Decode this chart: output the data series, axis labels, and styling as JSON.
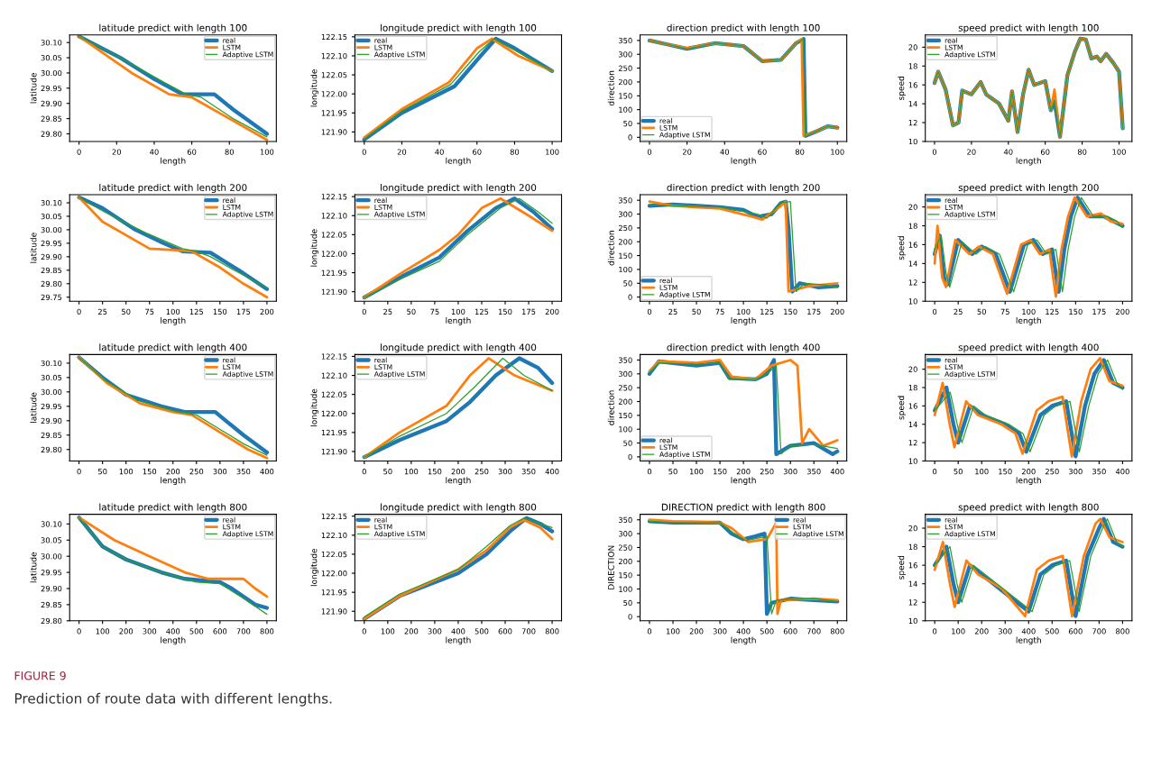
{
  "chart_data": [
    {
      "type": "line",
      "title": "latitude predict with length 100",
      "xlabel": "length",
      "ylabel": "latitude",
      "legend": "top right",
      "xlim": [
        -5,
        105
      ],
      "xticks": [
        0,
        20,
        40,
        60,
        80,
        100
      ],
      "ylim": [
        29.775,
        30.125
      ],
      "yticks": [
        {
          "value": 29.8,
          "label": "29.80"
        },
        {
          "value": 29.85,
          "label": "29.85"
        },
        {
          "value": 29.9,
          "label": "29.90"
        },
        {
          "value": 29.95,
          "label": "29.95"
        },
        {
          "value": 30.0,
          "label": "30.00"
        },
        {
          "value": 30.05,
          "label": "30.05"
        },
        {
          "value": 30.1,
          "label": "30.10"
        }
      ],
      "annotations": [
        "FIGURE 9",
        "Prediction of route data with different lengths."
      ],
      "series": [
        {
          "name": "real",
          "color": "#1f77b4",
          "x": [
            0,
            22,
            40,
            55,
            65,
            72,
            82,
            100
          ],
          "values": [
            30.12,
            30.05,
            29.98,
            29.93,
            29.93,
            29.93,
            29.88,
            29.8
          ]
        },
        {
          "name": "LSTM",
          "color": "#ff7f0e",
          "x": [
            0,
            28,
            48,
            60,
            80,
            100
          ],
          "values": [
            30.12,
            30.0,
            29.93,
            29.92,
            29.85,
            29.78
          ]
        },
        {
          "name": "Adaptive LSTM",
          "color": "#2ca02c",
          "x": [
            0,
            25,
            45,
            57,
            65,
            82,
            100
          ],
          "values": [
            30.12,
            30.04,
            29.97,
            29.93,
            29.92,
            29.85,
            29.79
          ]
        }
      ]
    },
    {
      "type": "line",
      "title": "longitude predict with length 100",
      "xlabel": "length",
      "ylabel": "longitude",
      "legend": "top left",
      "xlim": [
        -5,
        105
      ],
      "xticks": [
        0,
        20,
        40,
        60,
        80,
        100
      ],
      "ylim": [
        121.875,
        122.155
      ],
      "yticks": [
        {
          "value": 121.9,
          "label": "121.90"
        },
        {
          "value": 121.95,
          "label": "121.95"
        },
        {
          "value": 122.0,
          "label": "122.00"
        },
        {
          "value": 122.05,
          "label": "122.05"
        },
        {
          "value": 122.1,
          "label": "122.10"
        },
        {
          "value": 122.15,
          "label": "122.15"
        }
      ],
      "series": [
        {
          "name": "real",
          "color": "#1f77b4",
          "x": [
            0,
            20,
            48,
            62,
            70,
            80,
            100
          ],
          "values": [
            121.88,
            121.95,
            122.02,
            122.1,
            122.145,
            122.12,
            122.06
          ]
        },
        {
          "name": "LSTM",
          "color": "#ff7f0e",
          "x": [
            0,
            20,
            45,
            60,
            68,
            82,
            100
          ],
          "values": [
            121.885,
            121.96,
            122.03,
            122.12,
            122.145,
            122.1,
            122.06
          ]
        },
        {
          "name": "Adaptive LSTM",
          "color": "#2ca02c",
          "x": [
            0,
            20,
            46,
            61,
            69,
            80,
            100
          ],
          "values": [
            121.882,
            121.955,
            122.025,
            122.11,
            122.145,
            122.115,
            122.06
          ]
        }
      ]
    },
    {
      "type": "line",
      "title": "direction predict with length 100",
      "xlabel": "length",
      "ylabel": "direction",
      "legend": "bottom left",
      "xlim": [
        -5,
        105
      ],
      "xticks": [
        0,
        20,
        40,
        60,
        80,
        100
      ],
      "ylim": [
        -15,
        370
      ],
      "yticks": [
        0,
        50,
        100,
        150,
        200,
        250,
        300,
        350
      ],
      "series": [
        {
          "name": "real",
          "color": "#1f77b4",
          "x": [
            0,
            10,
            20,
            35,
            50,
            60,
            70,
            78,
            82,
            83,
            90,
            95,
            100
          ],
          "values": [
            350,
            335,
            320,
            340,
            330,
            275,
            280,
            340,
            355,
            5,
            25,
            40,
            35
          ]
        },
        {
          "name": "LSTM",
          "color": "#ff7f0e",
          "x": [
            0,
            10,
            20,
            35,
            50,
            60,
            70,
            78,
            81,
            82,
            90,
            95,
            100
          ],
          "values": [
            350,
            335,
            322,
            340,
            330,
            275,
            280,
            340,
            355,
            5,
            25,
            40,
            35
          ]
        },
        {
          "name": "Adaptive LSTM",
          "color": "#2ca02c",
          "x": [
            0,
            10,
            20,
            35,
            50,
            60,
            70,
            78,
            82,
            83,
            90,
            95,
            100
          ],
          "values": [
            350,
            335,
            320,
            340,
            330,
            275,
            280,
            340,
            355,
            5,
            25,
            40,
            35
          ]
        }
      ]
    },
    {
      "type": "line",
      "title": "speed predict with length 100",
      "xlabel": "length",
      "ylabel": "speed",
      "legend": "top left",
      "xlim": [
        -5,
        107
      ],
      "xticks": [
        0,
        20,
        40,
        60,
        80,
        100
      ],
      "ylim": [
        10,
        21.3
      ],
      "yticks": [
        10,
        12,
        14,
        16,
        18,
        20
      ],
      "series": [
        {
          "name": "real",
          "color": "#1f77b4",
          "x": [
            0,
            2,
            6,
            10,
            13,
            15,
            20,
            25,
            28,
            35,
            40,
            42,
            45,
            48,
            51,
            54,
            60,
            63,
            65,
            68,
            72,
            76,
            79,
            82,
            85,
            88,
            90,
            93,
            97,
            100,
            102
          ],
          "values": [
            16.2,
            17.4,
            15.5,
            11.7,
            12,
            15.4,
            15,
            16.3,
            15,
            14,
            12.2,
            15.3,
            11,
            15,
            17.6,
            16,
            16.4,
            13.3,
            14.3,
            10.5,
            17,
            19.5,
            20.9,
            20.8,
            18.8,
            19,
            18.5,
            19.3,
            18.3,
            17.4,
            11.4
          ]
        },
        {
          "name": "LSTM",
          "color": "#ff7f0e",
          "x": [
            0,
            2,
            6,
            10,
            13,
            15,
            20,
            25,
            28,
            35,
            40,
            42,
            45,
            48,
            51,
            54,
            60,
            63,
            65,
            68,
            72,
            76,
            79,
            82,
            85,
            88,
            90,
            93,
            97,
            100,
            102
          ],
          "values": [
            16.2,
            17.4,
            15.5,
            11.7,
            12,
            15.4,
            15,
            16.3,
            15,
            14,
            12.2,
            15.3,
            11,
            15,
            17.6,
            16,
            16.4,
            13.3,
            15.5,
            10.5,
            17,
            19.5,
            20.9,
            20.8,
            18.8,
            19,
            18.5,
            19.3,
            18.3,
            17.4,
            11.4
          ]
        },
        {
          "name": "Adaptive LSTM",
          "color": "#2ca02c",
          "x": [
            0,
            2,
            6,
            10,
            13,
            15,
            20,
            25,
            28,
            35,
            40,
            42,
            45,
            48,
            51,
            54,
            60,
            63,
            65,
            68,
            72,
            76,
            79,
            82,
            85,
            88,
            90,
            93,
            97,
            100,
            102
          ],
          "values": [
            16.2,
            17.4,
            15.5,
            11.7,
            12,
            15.4,
            15,
            16.3,
            15,
            14,
            12.2,
            15.3,
            11,
            15,
            17.6,
            16,
            16.4,
            13.3,
            14.3,
            10.5,
            17,
            19.5,
            20.9,
            20.8,
            18.8,
            19,
            18.5,
            19.3,
            18.3,
            17.4,
            11.4
          ]
        }
      ]
    },
    {
      "type": "line",
      "title": "latitude predict with length 200",
      "xlabel": "length",
      "ylabel": "latitude",
      "legend": "top right",
      "xlim": [
        -10,
        210
      ],
      "xticks": [
        0,
        25,
        50,
        75,
        100,
        125,
        150,
        175,
        200
      ],
      "ylim": [
        29.735,
        30.13
      ],
      "yticks": [
        {
          "value": 29.75,
          "label": "29.75"
        },
        {
          "value": 29.8,
          "label": "29.80"
        },
        {
          "value": 29.85,
          "label": "29.85"
        },
        {
          "value": 29.9,
          "label": "29.90"
        },
        {
          "value": 29.95,
          "label": "29.95"
        },
        {
          "value": 30.0,
          "label": "30.00"
        },
        {
          "value": 30.05,
          "label": "30.05"
        },
        {
          "value": 30.1,
          "label": "30.10"
        }
      ],
      "series": [
        {
          "name": "real",
          "color": "#1f77b4",
          "x": [
            0,
            25,
            60,
            90,
            110,
            140,
            170,
            200
          ],
          "values": [
            30.12,
            30.08,
            30.0,
            29.95,
            29.92,
            29.915,
            29.85,
            29.78
          ]
        },
        {
          "name": "LSTM",
          "color": "#ff7f0e",
          "x": [
            0,
            25,
            75,
            100,
            120,
            150,
            175,
            200
          ],
          "values": [
            30.12,
            30.03,
            29.93,
            29.925,
            29.92,
            29.86,
            29.8,
            29.75
          ]
        },
        {
          "name": "Adaptive LSTM",
          "color": "#2ca02c",
          "x": [
            0,
            25,
            70,
            110,
            125,
            140,
            165,
            200
          ],
          "values": [
            30.12,
            30.07,
            29.99,
            29.93,
            29.92,
            29.9,
            29.85,
            29.785
          ]
        }
      ]
    },
    {
      "type": "line",
      "title": "longitude predict with length 200",
      "xlabel": "length",
      "ylabel": "longitude",
      "legend": "top left",
      "xlim": [
        -10,
        210
      ],
      "xticks": [
        0,
        25,
        50,
        75,
        100,
        125,
        150,
        175,
        200
      ],
      "ylim": [
        121.875,
        122.155
      ],
      "yticks": [
        {
          "value": 121.9,
          "label": "121.90"
        },
        {
          "value": 121.95,
          "label": "121.95"
        },
        {
          "value": 122.0,
          "label": "122.00"
        },
        {
          "value": 122.05,
          "label": "122.05"
        },
        {
          "value": 122.1,
          "label": "122.10"
        },
        {
          "value": 122.15,
          "label": "122.15"
        }
      ],
      "series": [
        {
          "name": "real",
          "color": "#1f77b4",
          "x": [
            0,
            40,
            80,
            110,
            140,
            160,
            180,
            200
          ],
          "values": [
            121.885,
            121.94,
            121.99,
            122.06,
            122.12,
            122.145,
            122.11,
            122.065
          ]
        },
        {
          "name": "LSTM",
          "color": "#ff7f0e",
          "x": [
            0,
            40,
            80,
            100,
            125,
            145,
            175,
            200
          ],
          "values": [
            121.885,
            121.95,
            122.01,
            122.05,
            122.12,
            122.145,
            122.1,
            122.06
          ]
        },
        {
          "name": "Adaptive LSTM",
          "color": "#2ca02c",
          "x": [
            0,
            40,
            80,
            110,
            145,
            165,
            185,
            200
          ],
          "values": [
            121.885,
            121.935,
            121.98,
            122.05,
            122.12,
            122.145,
            122.11,
            122.08
          ]
        }
      ]
    },
    {
      "type": "line",
      "title": "direction predict with length 200",
      "xlabel": "length",
      "ylabel": "direction",
      "legend": "bottom left",
      "xlim": [
        -10,
        210
      ],
      "xticks": [
        0,
        25,
        50,
        75,
        100,
        125,
        150,
        175,
        200
      ],
      "ylim": [
        -15,
        370
      ],
      "yticks": [
        0,
        50,
        100,
        150,
        200,
        250,
        300,
        350
      ],
      "series": [
        {
          "name": "real",
          "color": "#1f77b4",
          "x": [
            0,
            25,
            75,
            100,
            115,
            130,
            140,
            145,
            148,
            152,
            160,
            180,
            200
          ],
          "values": [
            330,
            335,
            325,
            315,
            290,
            300,
            340,
            345,
            250,
            20,
            50,
            35,
            40
          ]
        },
        {
          "name": "LSTM",
          "color": "#ff7f0e",
          "x": [
            0,
            25,
            75,
            110,
            120,
            140,
            145,
            148,
            170,
            200
          ],
          "values": [
            345,
            330,
            320,
            290,
            280,
            330,
            345,
            20,
            40,
            50
          ]
        },
        {
          "name": "Adaptive LSTM",
          "color": "#2ca02c",
          "x": [
            0,
            25,
            75,
            115,
            125,
            140,
            150,
            156,
            165,
            185,
            200
          ],
          "values": [
            335,
            330,
            325,
            300,
            285,
            340,
            345,
            20,
            50,
            45,
            35
          ]
        }
      ]
    },
    {
      "type": "line",
      "title": "speed predict with length 200",
      "xlabel": "length",
      "ylabel": "speed",
      "legend": "top left",
      "xlim": [
        -10,
        210
      ],
      "xticks": [
        0,
        25,
        50,
        75,
        100,
        125,
        150,
        175,
        200
      ],
      "ylim": [
        10,
        21.3
      ],
      "yticks": [
        10,
        12,
        14,
        16,
        18,
        20
      ],
      "series": [
        {
          "name": "real",
          "color": "#1f77b4",
          "x": [
            0,
            5,
            10,
            14,
            25,
            40,
            50,
            65,
            80,
            95,
            105,
            115,
            125,
            132,
            138,
            145,
            152,
            165,
            180,
            190,
            200
          ],
          "values": [
            15,
            17,
            12.5,
            11.8,
            16.5,
            15,
            15.8,
            15,
            11,
            16,
            16.5,
            15,
            15.5,
            11,
            15.5,
            19,
            21,
            19,
            19,
            18.5,
            18
          ]
        },
        {
          "name": "LSTM",
          "color": "#ff7f0e",
          "x": [
            0,
            3,
            8,
            12,
            22,
            37,
            47,
            62,
            77,
            92,
            102,
            112,
            122,
            129,
            135,
            142,
            149,
            162,
            177,
            187,
            200
          ],
          "values": [
            14,
            18,
            12.5,
            11.5,
            16.5,
            15,
            15.8,
            15,
            10.8,
            16,
            16.5,
            15,
            15.5,
            10.5,
            15.5,
            19,
            21,
            19,
            19.3,
            18.5,
            18.2
          ]
        },
        {
          "name": "Adaptive LSTM",
          "color": "#2ca02c",
          "x": [
            0,
            7,
            12,
            16,
            29,
            44,
            54,
            69,
            84,
            99,
            109,
            119,
            129,
            136,
            142,
            149,
            156,
            169,
            184,
            194,
            200
          ],
          "values": [
            15.5,
            17,
            13,
            11.5,
            16.3,
            15,
            15.8,
            15,
            11,
            16,
            16.5,
            15,
            15.5,
            11,
            15.5,
            19,
            21,
            19,
            19,
            18.5,
            17.8
          ]
        }
      ]
    },
    {
      "type": "line",
      "title": "latitude predict with length 400",
      "xlabel": "length",
      "ylabel": "latitude",
      "legend": "top right",
      "xlim": [
        -20,
        420
      ],
      "xticks": [
        0,
        50,
        100,
        150,
        200,
        250,
        300,
        350,
        400
      ],
      "ylim": [
        29.76,
        30.13
      ],
      "yticks": [
        {
          "value": 29.8,
          "label": "29.80"
        },
        {
          "value": 29.85,
          "label": "29.85"
        },
        {
          "value": 29.9,
          "label": "29.90"
        },
        {
          "value": 29.95,
          "label": "29.95"
        },
        {
          "value": 30.0,
          "label": "30.00"
        },
        {
          "value": 30.05,
          "label": "30.05"
        },
        {
          "value": 30.1,
          "label": "30.10"
        }
      ],
      "series": [
        {
          "name": "real",
          "color": "#1f77b4",
          "x": [
            0,
            50,
            100,
            175,
            225,
            290,
            350,
            400
          ],
          "values": [
            30.12,
            30.05,
            29.99,
            29.95,
            29.93,
            29.93,
            29.85,
            29.79
          ]
        },
        {
          "name": "LSTM",
          "color": "#ff7f0e",
          "x": [
            0,
            60,
            130,
            200,
            240,
            300,
            360,
            400
          ],
          "values": [
            30.12,
            30.03,
            29.96,
            29.93,
            29.92,
            29.86,
            29.8,
            29.77
          ]
        },
        {
          "name": "Adaptive LSTM",
          "color": "#2ca02c",
          "x": [
            0,
            55,
            125,
            210,
            250,
            290,
            350,
            400
          ],
          "values": [
            30.12,
            30.04,
            29.97,
            29.93,
            29.92,
            29.88,
            29.82,
            29.78
          ]
        }
      ]
    },
    {
      "type": "line",
      "title": "longitude predict with length 400",
      "xlabel": "length",
      "ylabel": "longitude",
      "legend": "top left",
      "xlim": [
        -20,
        420
      ],
      "xticks": [
        0,
        50,
        100,
        150,
        200,
        250,
        300,
        350,
        400
      ],
      "ylim": [
        121.875,
        122.155
      ],
      "yticks": [
        {
          "value": 121.9,
          "label": "121.90"
        },
        {
          "value": 121.95,
          "label": "121.95"
        },
        {
          "value": 122.0,
          "label": "122.00"
        },
        {
          "value": 122.05,
          "label": "122.05"
        },
        {
          "value": 122.1,
          "label": "122.10"
        },
        {
          "value": 122.15,
          "label": "122.15"
        }
      ],
      "series": [
        {
          "name": "real",
          "color": "#1f77b4",
          "x": [
            0,
            75,
            175,
            225,
            280,
            330,
            370,
            400
          ],
          "values": [
            121.885,
            121.93,
            121.98,
            122.03,
            122.1,
            122.145,
            122.12,
            122.08
          ]
        },
        {
          "name": "LSTM",
          "color": "#ff7f0e",
          "x": [
            0,
            75,
            175,
            225,
            265,
            320,
            400
          ],
          "values": [
            121.885,
            121.95,
            122.02,
            122.1,
            122.145,
            122.1,
            122.06
          ]
        },
        {
          "name": "Adaptive LSTM",
          "color": "#2ca02c",
          "x": [
            0,
            75,
            175,
            235,
            295,
            340,
            400
          ],
          "values": [
            121.885,
            121.94,
            122.0,
            122.07,
            122.145,
            122.1,
            122.06
          ]
        }
      ]
    },
    {
      "type": "line",
      "title": "direction predict with length 400",
      "xlabel": "length",
      "ylabel": "direction",
      "legend": "bottom left",
      "xlim": [
        -20,
        420
      ],
      "xticks": [
        0,
        50,
        100,
        150,
        200,
        250,
        300,
        350,
        400
      ],
      "ylim": [
        -15,
        370
      ],
      "yticks": [
        0,
        50,
        100,
        150,
        200,
        250,
        300,
        350
      ],
      "series": [
        {
          "name": "real",
          "color": "#1f77b4",
          "x": [
            0,
            20,
            100,
            150,
            170,
            225,
            250,
            265,
            270,
            300,
            350,
            390,
            400
          ],
          "values": [
            300,
            345,
            330,
            340,
            285,
            280,
            300,
            350,
            10,
            40,
            50,
            10,
            20
          ]
        },
        {
          "name": "LSTM",
          "color": "#ff7f0e",
          "x": [
            0,
            20,
            100,
            150,
            175,
            225,
            260,
            300,
            315,
            325,
            340,
            370,
            400
          ],
          "values": [
            310,
            345,
            340,
            350,
            290,
            280,
            330,
            350,
            330,
            50,
            100,
            40,
            60
          ]
        },
        {
          "name": "Adaptive LSTM",
          "color": "#2ca02c",
          "x": [
            0,
            20,
            100,
            150,
            170,
            225,
            250,
            270,
            280,
            300,
            350,
            400
          ],
          "values": [
            305,
            340,
            335,
            340,
            280,
            280,
            300,
            330,
            10,
            40,
            45,
            30
          ]
        }
      ]
    },
    {
      "type": "line",
      "title": "speed predict with length 400",
      "xlabel": "length",
      "ylabel": "speed",
      "legend": "top left",
      "xlim": [
        -20,
        420
      ],
      "xticks": [
        0,
        50,
        100,
        150,
        200,
        250,
        300,
        350,
        400
      ],
      "ylim": [
        10,
        21.6
      ],
      "yticks": [
        10,
        12,
        14,
        16,
        18,
        20
      ],
      "series": [
        {
          "name": "real",
          "color": "#1f77b4",
          "x": [
            0,
            25,
            40,
            50,
            75,
            100,
            150,
            180,
            195,
            225,
            250,
            280,
            300,
            320,
            340,
            360,
            380,
            400
          ],
          "values": [
            15.5,
            18,
            14,
            12,
            16,
            15,
            14,
            13,
            11,
            15,
            16,
            16.5,
            10.5,
            16,
            19.5,
            21,
            18.5,
            18
          ]
        },
        {
          "name": "LSTM",
          "color": "#ff7f0e",
          "x": [
            0,
            17,
            32,
            42,
            67,
            92,
            142,
            172,
            187,
            217,
            242,
            272,
            292,
            312,
            332,
            352,
            372,
            400
          ],
          "values": [
            15,
            18.5,
            14,
            11.5,
            16.5,
            15,
            14,
            13,
            10.8,
            15.5,
            16.5,
            17,
            10.5,
            16.5,
            20,
            21.2,
            18.7,
            18.2
          ]
        },
        {
          "name": "Adaptive LSTM",
          "color": "#2ca02c",
          "x": [
            0,
            33,
            48,
            58,
            83,
            108,
            158,
            188,
            203,
            233,
            258,
            288,
            308,
            328,
            348,
            368,
            388,
            400
          ],
          "values": [
            15.5,
            17.5,
            14,
            12,
            16,
            15,
            14,
            13,
            11,
            15,
            16,
            16.5,
            11,
            16,
            19.5,
            21,
            18.5,
            17.8
          ]
        }
      ]
    },
    {
      "type": "line",
      "title": "latitude predict with length 800",
      "xlabel": "length",
      "ylabel": "latitude",
      "legend": "top right",
      "xlim": [
        -40,
        840
      ],
      "xticks": [
        0,
        100,
        200,
        300,
        400,
        500,
        600,
        700,
        800
      ],
      "ylim": [
        29.8,
        30.13
      ],
      "yticks": [
        {
          "value": 29.8,
          "label": "29.80"
        },
        {
          "value": 29.85,
          "label": "29.85"
        },
        {
          "value": 29.9,
          "label": "29.90"
        },
        {
          "value": 29.95,
          "label": "29.95"
        },
        {
          "value": 30.0,
          "label": "30.00"
        },
        {
          "value": 30.05,
          "label": "30.05"
        },
        {
          "value": 30.1,
          "label": "30.10"
        }
      ],
      "series": [
        {
          "name": "real",
          "color": "#1f77b4",
          "x": [
            0,
            100,
            200,
            350,
            450,
            600,
            650,
            750,
            800
          ],
          "values": [
            30.12,
            30.03,
            29.99,
            29.95,
            29.93,
            29.92,
            29.9,
            29.85,
            29.84
          ]
        },
        {
          "name": "LSTM",
          "color": "#ff7f0e",
          "x": [
            0,
            150,
            300,
            450,
            550,
            700,
            750,
            800
          ],
          "values": [
            30.12,
            30.05,
            30.0,
            29.95,
            29.93,
            29.93,
            29.9,
            29.875
          ]
        },
        {
          "name": "Adaptive LSTM",
          "color": "#2ca02c",
          "x": [
            0,
            100,
            200,
            350,
            500,
            600,
            700,
            800
          ],
          "values": [
            30.12,
            30.03,
            29.99,
            29.95,
            29.92,
            29.915,
            29.87,
            29.82
          ]
        }
      ]
    },
    {
      "type": "line",
      "title": "longitude predict with length 800",
      "xlabel": "length",
      "ylabel": "longitude",
      "legend": "top left",
      "xlim": [
        -40,
        840
      ],
      "xticks": [
        0,
        100,
        200,
        300,
        400,
        500,
        600,
        700,
        800
      ],
      "ylim": [
        121.875,
        122.155
      ],
      "yticks": [
        {
          "value": 121.9,
          "label": "121.90"
        },
        {
          "value": 121.95,
          "label": "121.95"
        },
        {
          "value": 122.0,
          "label": "122.00"
        },
        {
          "value": 122.05,
          "label": "122.05"
        },
        {
          "value": 122.1,
          "label": "122.10"
        },
        {
          "value": 122.15,
          "label": "122.15"
        }
      ],
      "series": [
        {
          "name": "real",
          "color": "#1f77b4",
          "x": [
            0,
            150,
            400,
            520,
            620,
            690,
            750,
            800
          ],
          "values": [
            121.88,
            121.94,
            122.0,
            122.05,
            122.11,
            122.145,
            122.13,
            122.11
          ]
        },
        {
          "name": "LSTM",
          "color": "#ff7f0e",
          "x": [
            0,
            150,
            400,
            520,
            620,
            680,
            750,
            800
          ],
          "values": [
            121.88,
            121.94,
            122.01,
            122.06,
            122.12,
            122.14,
            122.12,
            122.09
          ]
        },
        {
          "name": "Adaptive LSTM",
          "color": "#2ca02c",
          "x": [
            0,
            150,
            400,
            520,
            620,
            680,
            750,
            800
          ],
          "values": [
            121.885,
            121.945,
            122.01,
            122.07,
            122.125,
            122.145,
            122.13,
            122.12
          ]
        }
      ]
    },
    {
      "type": "line",
      "title": "DIRECTION predict with length 800",
      "xlabel": "length",
      "ylabel": "DIRECTION",
      "legend": "top right",
      "xlim": [
        -40,
        840
      ],
      "xticks": [
        0,
        100,
        200,
        300,
        400,
        500,
        600,
        700,
        800
      ],
      "ylim": [
        -15,
        370
      ],
      "yticks": [
        0,
        50,
        100,
        150,
        200,
        250,
        300,
        350
      ],
      "series": [
        {
          "name": "real",
          "color": "#1f77b4",
          "x": [
            0,
            100,
            300,
            350,
            400,
            450,
            490,
            500,
            520,
            600,
            700,
            800
          ],
          "values": [
            345,
            340,
            340,
            300,
            280,
            290,
            300,
            10,
            50,
            65,
            60,
            55
          ]
        },
        {
          "name": "LSTM",
          "color": "#ff7f0e",
          "x": [
            0,
            100,
            300,
            350,
            420,
            500,
            540,
            545,
            560,
            700,
            800
          ],
          "values": [
            350,
            345,
            340,
            320,
            270,
            280,
            340,
            10,
            60,
            65,
            60
          ]
        },
        {
          "name": "Adaptive LSTM",
          "color": "#2ca02c",
          "x": [
            0,
            100,
            300,
            360,
            410,
            500,
            520,
            540,
            700,
            800
          ],
          "values": [
            345,
            340,
            340,
            300,
            275,
            290,
            10,
            60,
            65,
            55
          ]
        }
      ]
    },
    {
      "type": "line",
      "title": "speed predict with length 800",
      "xlabel": "length",
      "ylabel": "speed",
      "legend": "top left",
      "xlim": [
        -40,
        840
      ],
      "xticks": [
        0,
        100,
        200,
        300,
        400,
        500,
        600,
        700,
        800
      ],
      "ylim": [
        10,
        21.5
      ],
      "yticks": [
        10,
        12,
        14,
        16,
        18,
        20
      ],
      "series": [
        {
          "name": "real",
          "color": "#1f77b4",
          "x": [
            0,
            50,
            80,
            100,
            150,
            200,
            300,
            350,
            400,
            450,
            500,
            560,
            600,
            650,
            700,
            720,
            760,
            800
          ],
          "values": [
            16,
            18,
            14,
            12,
            16,
            15,
            13,
            12,
            11,
            15,
            16,
            16.5,
            10.5,
            17,
            20,
            21,
            18.5,
            18
          ]
        },
        {
          "name": "LSTM",
          "color": "#ff7f0e",
          "x": [
            0,
            35,
            65,
            85,
            135,
            185,
            285,
            335,
            385,
            435,
            485,
            545,
            585,
            635,
            685,
            705,
            745,
            800
          ],
          "values": [
            15.5,
            18.5,
            14,
            11.5,
            16.5,
            15,
            13.5,
            12,
            10.5,
            15.5,
            16.5,
            17,
            10.5,
            17,
            20.5,
            21,
            19,
            18.5
          ]
        },
        {
          "name": "Adaptive LSTM",
          "color": "#2ca02c",
          "x": [
            0,
            65,
            95,
            115,
            165,
            215,
            315,
            365,
            415,
            465,
            515,
            575,
            615,
            665,
            715,
            735,
            775,
            800
          ],
          "values": [
            16,
            18,
            14,
            12,
            16,
            15,
            13,
            12,
            11,
            15,
            16,
            16.5,
            11,
            17,
            20,
            21,
            18.5,
            18
          ]
        }
      ]
    }
  ]
}
